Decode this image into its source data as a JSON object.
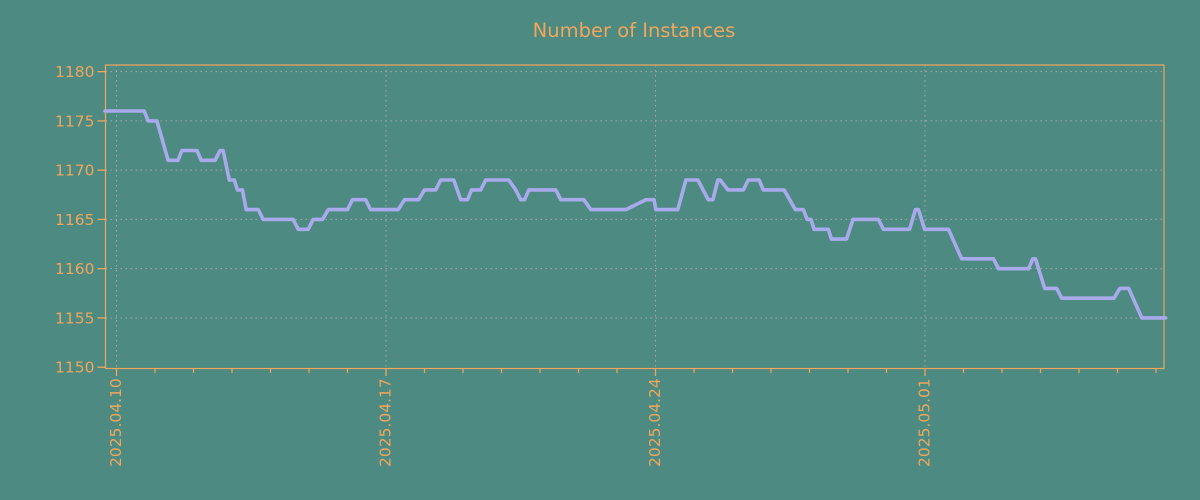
{
  "title": "Number of Instances",
  "colors": {
    "background": "#4d8a82",
    "axis": "#f0a65c",
    "text": "#f0a65c",
    "line": "#a9aaec",
    "grid": "#a8a8a8"
  },
  "chart_data": {
    "type": "line",
    "title": "Number of Instances",
    "xlabel": "",
    "ylabel": "",
    "grid": true,
    "legend_position": "none",
    "ylim": [
      1150,
      1180
    ],
    "y_ticks": [
      1150,
      1155,
      1160,
      1165,
      1170,
      1175,
      1180
    ],
    "x_unit": "days since 2025.04.10",
    "xlim_days": [
      -0.3,
      27.2
    ],
    "x_major_ticks": [
      {
        "day": 0,
        "label": "2025.04.10"
      },
      {
        "day": 7,
        "label": "2025.04.17"
      },
      {
        "day": 14,
        "label": "2025.04.24"
      },
      {
        "day": 21,
        "label": "2025.05.01"
      }
    ],
    "x_minor_tick_every_days": 1,
    "series": [
      {
        "name": "Number of Instances",
        "color": "#a9aaec",
        "points": [
          [
            -0.3,
            1176
          ],
          [
            0.72,
            1176
          ],
          [
            0.82,
            1175
          ],
          [
            1.05,
            1175
          ],
          [
            1.34,
            1171
          ],
          [
            1.6,
            1171
          ],
          [
            1.7,
            1172
          ],
          [
            2.09,
            1172
          ],
          [
            2.2,
            1171
          ],
          [
            2.56,
            1171
          ],
          [
            2.69,
            1172
          ],
          [
            2.77,
            1172
          ],
          [
            2.93,
            1169
          ],
          [
            3.06,
            1169
          ],
          [
            3.14,
            1168
          ],
          [
            3.27,
            1168
          ],
          [
            3.37,
            1166
          ],
          [
            3.68,
            1166
          ],
          [
            3.81,
            1165
          ],
          [
            4.59,
            1165
          ],
          [
            4.72,
            1164
          ],
          [
            4.98,
            1164
          ],
          [
            5.11,
            1165
          ],
          [
            5.35,
            1165
          ],
          [
            5.5,
            1166
          ],
          [
            6.0,
            1166
          ],
          [
            6.13,
            1167
          ],
          [
            6.47,
            1167
          ],
          [
            6.6,
            1166
          ],
          [
            7.32,
            1166
          ],
          [
            7.48,
            1167
          ],
          [
            7.85,
            1167
          ],
          [
            8.0,
            1168
          ],
          [
            8.29,
            1168
          ],
          [
            8.42,
            1169
          ],
          [
            8.76,
            1169
          ],
          [
            8.94,
            1167
          ],
          [
            9.12,
            1167
          ],
          [
            9.22,
            1168
          ],
          [
            9.46,
            1168
          ],
          [
            9.59,
            1169
          ],
          [
            10.19,
            1169
          ],
          [
            10.37,
            1168
          ],
          [
            10.5,
            1167
          ],
          [
            10.6,
            1167
          ],
          [
            10.71,
            1168
          ],
          [
            11.41,
            1168
          ],
          [
            11.54,
            1167
          ],
          [
            12.14,
            1167
          ],
          [
            12.32,
            1166
          ],
          [
            13.23,
            1166
          ],
          [
            13.75,
            1167
          ],
          [
            13.96,
            1167
          ],
          [
            14.01,
            1166
          ],
          [
            14.58,
            1166
          ],
          [
            14.79,
            1169
          ],
          [
            15.1,
            1169
          ],
          [
            15.37,
            1167
          ],
          [
            15.49,
            1167
          ],
          [
            15.62,
            1169
          ],
          [
            15.68,
            1169
          ],
          [
            15.88,
            1168
          ],
          [
            16.28,
            1168
          ],
          [
            16.41,
            1169
          ],
          [
            16.69,
            1169
          ],
          [
            16.8,
            1168
          ],
          [
            17.34,
            1168
          ],
          [
            17.63,
            1166
          ],
          [
            17.84,
            1166
          ],
          [
            17.94,
            1165
          ],
          [
            18.04,
            1165
          ],
          [
            18.12,
            1164
          ],
          [
            18.49,
            1164
          ],
          [
            18.57,
            1163
          ],
          [
            18.96,
            1163
          ],
          [
            19.13,
            1165
          ],
          [
            19.79,
            1165
          ],
          [
            19.92,
            1164
          ],
          [
            20.6,
            1164
          ],
          [
            20.75,
            1166
          ],
          [
            20.83,
            1166
          ],
          [
            20.99,
            1164
          ],
          [
            21.61,
            1164
          ],
          [
            21.95,
            1161
          ],
          [
            22.78,
            1161
          ],
          [
            22.91,
            1160
          ],
          [
            23.69,
            1160
          ],
          [
            23.8,
            1161
          ],
          [
            23.87,
            1161
          ],
          [
            24.11,
            1158
          ],
          [
            24.42,
            1158
          ],
          [
            24.55,
            1157
          ],
          [
            25.91,
            1157
          ],
          [
            26.06,
            1158
          ],
          [
            26.29,
            1158
          ],
          [
            26.63,
            1155
          ],
          [
            27.25,
            1155
          ]
        ]
      }
    ]
  }
}
